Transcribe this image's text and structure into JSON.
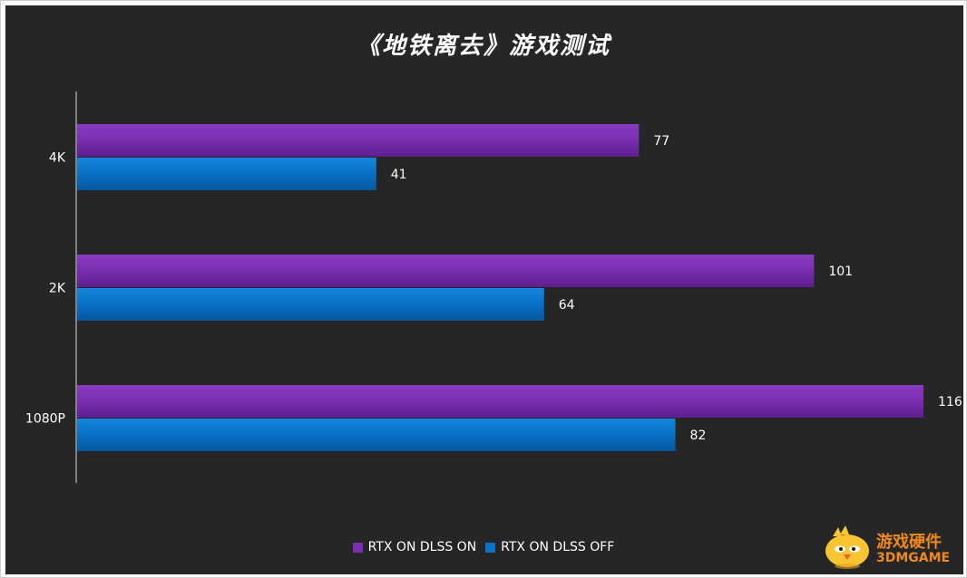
{
  "chart_data": {
    "type": "bar",
    "orientation": "horizontal",
    "title": "《地铁离去》游戏测试",
    "categories": [
      "4K",
      "2K",
      "1080P"
    ],
    "series": [
      {
        "name": "RTX ON DLSS ON",
        "values": [
          77,
          101,
          116
        ],
        "color": "#7b2fb0"
      },
      {
        "name": "RTX ON DLSS OFF",
        "values": [
          41,
          64,
          82
        ],
        "color": "#0a72c8"
      }
    ],
    "xlim": [
      0,
      116
    ],
    "grid": false,
    "legend_position": "bottom",
    "background_color": "#262626"
  },
  "watermark": {
    "line1": "游戏硬件",
    "line2": "3DMGAME",
    "color": "#f08a1c",
    "icon": "chick-mascot-icon"
  }
}
